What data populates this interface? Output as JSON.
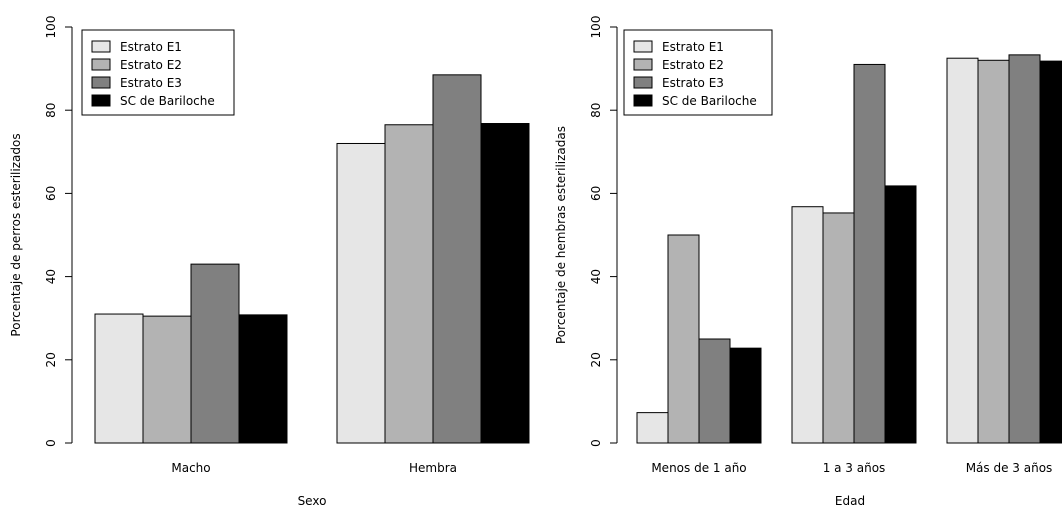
{
  "chart_data": [
    {
      "type": "bar",
      "title": "",
      "xlabel": "Sexo",
      "ylabel": "Porcentaje de perros esterilizados",
      "ylim": [
        0,
        100
      ],
      "yticks": [
        0,
        20,
        40,
        60,
        80,
        100
      ],
      "categories": [
        "Macho",
        "Hembra"
      ],
      "series": [
        {
          "name": "Estrato E1",
          "color": "#e6e6e6",
          "values": [
            31.0,
            72.0
          ]
        },
        {
          "name": "Estrato E2",
          "color": "#b3b3b3",
          "values": [
            30.5,
            76.5
          ]
        },
        {
          "name": "Estrato E3",
          "color": "#808080",
          "values": [
            43.0,
            88.5
          ]
        },
        {
          "name": "SC de Bariloche",
          "color": "#000000",
          "values": [
            30.8,
            76.8
          ]
        }
      ],
      "legend": "top-left",
      "grid": false
    },
    {
      "type": "bar",
      "title": "",
      "xlabel": "Edad",
      "ylabel": "Porcentaje de hembras esterilizadas",
      "ylim": [
        0,
        100
      ],
      "yticks": [
        0,
        20,
        40,
        60,
        80,
        100
      ],
      "categories": [
        "Menos de 1 año",
        "1 a 3 años",
        "Más de 3 años"
      ],
      "series": [
        {
          "name": "Estrato E1",
          "color": "#e6e6e6",
          "values": [
            7.3,
            56.8,
            92.5
          ]
        },
        {
          "name": "Estrato E2",
          "color": "#b3b3b3",
          "values": [
            50.0,
            55.3,
            92.0
          ]
        },
        {
          "name": "Estrato E3",
          "color": "#808080",
          "values": [
            25.0,
            91.0,
            93.3
          ]
        },
        {
          "name": "SC de Bariloche",
          "color": "#000000",
          "values": [
            22.8,
            61.8,
            91.8
          ]
        }
      ],
      "legend": "top-left",
      "grid": false
    }
  ]
}
